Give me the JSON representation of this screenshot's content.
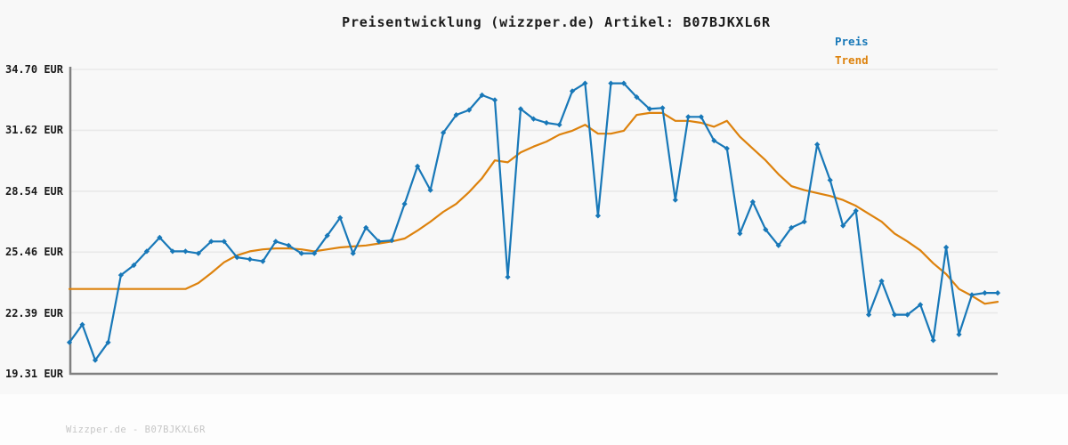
{
  "title": "Preisentwicklung (wizzper.de) Artikel: B07BJKXL6R",
  "legend": {
    "preis_label": "Preis",
    "trend_label": "Trend"
  },
  "footer": {
    "watermark": "Wizzper.de - B07BJKXL6R"
  },
  "colors": {
    "preis": "#1878b8",
    "trend": "#dd820d",
    "grid": "#e9e9e9",
    "axis": "#808080",
    "chart_bg": "#f8f8f8",
    "tick_text": "#1a1a1a",
    "watermark_text": "#c6c6c6"
  },
  "chart_data": {
    "type": "line",
    "title": "Preisentwicklung (wizzper.de) Artikel: B07BJKXL6R",
    "xlabel": "",
    "ylabel": "EUR",
    "ylim": [
      19.31,
      34.7
    ],
    "yticks": [
      19.31,
      22.39,
      25.46,
      28.54,
      31.62,
      34.7
    ],
    "ytick_labels": [
      "19.31 EUR",
      "22.39 EUR",
      "25.46 EUR",
      "28.54 EUR",
      "31.62 EUR",
      "34.70 EUR"
    ],
    "grid": "horizontal",
    "legend_position": "top-right",
    "x_count": 73,
    "series": [
      {
        "name": "Preis",
        "color": "#1878b8",
        "markers": true,
        "values": [
          20.9,
          21.8,
          20.0,
          20.9,
          24.3,
          24.8,
          25.5,
          26.2,
          25.5,
          25.5,
          25.4,
          26.0,
          26.0,
          25.2,
          25.1,
          25.0,
          26.0,
          25.8,
          25.4,
          25.4,
          26.3,
          27.2,
          25.4,
          26.7,
          26.0,
          26.05,
          27.9,
          29.8,
          28.6,
          31.5,
          32.4,
          32.65,
          33.4,
          33.15,
          24.2,
          32.7,
          32.2,
          32.0,
          31.9,
          33.6,
          34.0,
          27.3,
          34.0,
          34.0,
          33.3,
          32.7,
          32.75,
          28.1,
          32.3,
          32.3,
          31.1,
          30.7,
          26.4,
          28.0,
          26.6,
          25.8,
          26.7,
          27.0,
          30.9,
          29.1,
          26.8,
          27.55,
          22.3,
          24.0,
          22.3,
          22.3,
          22.8,
          21.0,
          25.7,
          21.3,
          23.3,
          23.4,
          23.4
        ]
      },
      {
        "name": "Trend",
        "color": "#dd820d",
        "markers": false,
        "values": [
          23.6,
          23.6,
          23.6,
          23.6,
          23.6,
          23.6,
          23.6,
          23.6,
          23.6,
          23.6,
          23.9,
          24.4,
          24.95,
          25.3,
          25.5,
          25.6,
          25.65,
          25.65,
          25.6,
          25.5,
          25.6,
          25.7,
          25.75,
          25.8,
          25.9,
          26.0,
          26.15,
          26.55,
          27.0,
          27.5,
          27.9,
          28.5,
          29.2,
          30.1,
          30.0,
          30.5,
          30.8,
          31.05,
          31.4,
          31.6,
          31.9,
          31.45,
          31.45,
          31.6,
          32.4,
          32.5,
          32.5,
          32.1,
          32.1,
          32.0,
          31.8,
          32.1,
          31.3,
          30.7,
          30.1,
          29.4,
          28.8,
          28.6,
          28.45,
          28.3,
          28.1,
          27.8,
          27.4,
          27.0,
          26.4,
          26.0,
          25.55,
          24.9,
          24.35,
          23.6,
          23.25,
          22.85,
          22.95
        ]
      }
    ]
  }
}
